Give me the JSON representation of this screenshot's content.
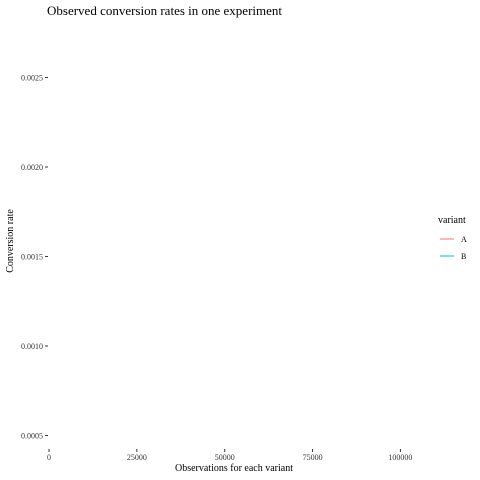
{
  "chart_data": {
    "type": "line",
    "title": "Observed conversion rates in one experiment",
    "xlabel": "Observations for each variant",
    "ylabel": "Conversion rate",
    "xlim": [
      0,
      105000
    ],
    "ylim": [
      0.00043,
      0.00281
    ],
    "x_ticks": [
      0,
      25000,
      50000,
      75000,
      100000
    ],
    "x_tick_labels": [
      "0",
      "25000",
      "50000",
      "75000",
      "100000"
    ],
    "y_ticks": [
      0.0005,
      0.001,
      0.0015,
      0.002,
      0.0025
    ],
    "y_tick_labels": [
      "0.0005",
      "0.0010",
      "0.0015",
      "0.0020",
      "0.0025"
    ],
    "grid": false,
    "legend": {
      "title": "variant",
      "position": "right"
    },
    "series": [
      {
        "name": "A",
        "color": "#F8766D",
        "x": [],
        "y": []
      },
      {
        "name": "B",
        "color": "#00BFC4",
        "x": [],
        "y": []
      }
    ]
  }
}
